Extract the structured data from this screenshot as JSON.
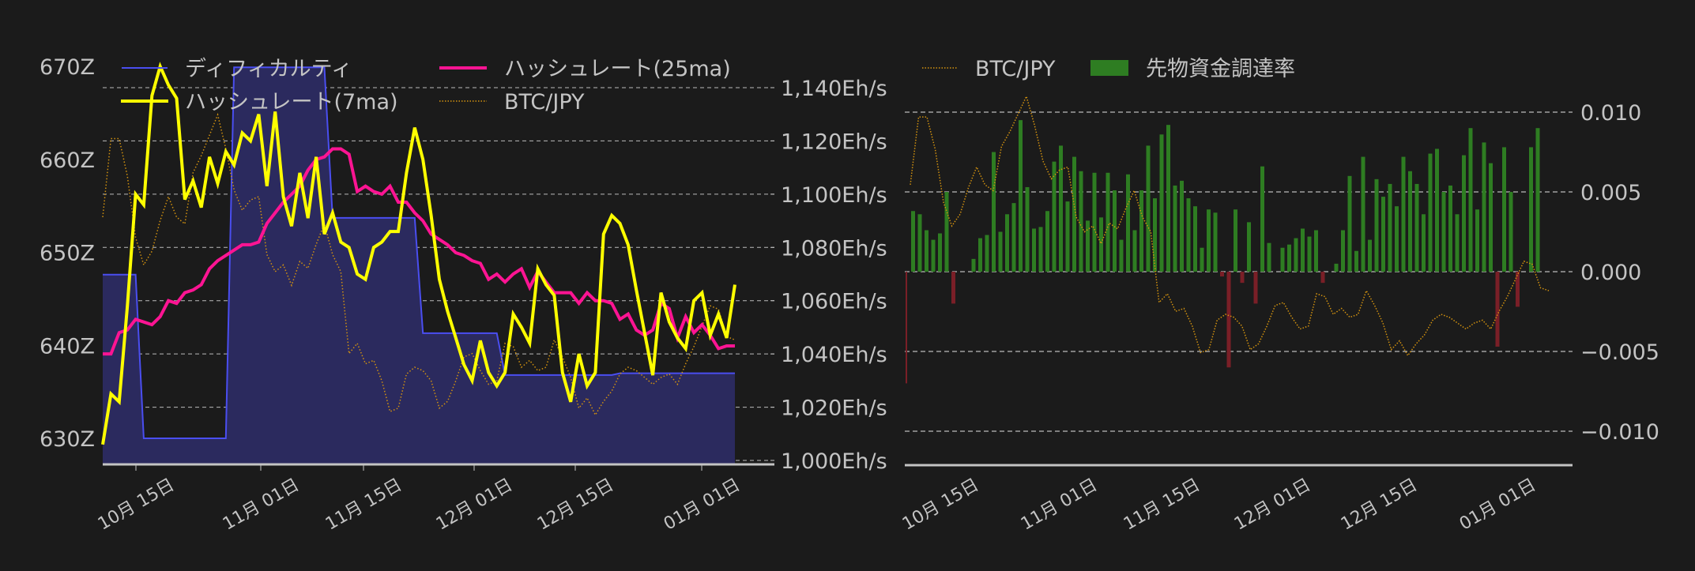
{
  "colors": {
    "background": "#1b1b1b",
    "difficulty_line": "#4a4ef0",
    "difficulty_fill": "#2b2a5e",
    "hashrate_7ma": "#ffff00",
    "hashrate_25ma": "#ff1493",
    "btc_jpy": "#d4930f",
    "funding_positive": "#2e7d22",
    "funding_negative": "#7a1f27",
    "grid": "#d8d8d8",
    "text": "#c4c4c4"
  },
  "chart_data": [
    {
      "type": "line",
      "title": "",
      "legend": [
        "ディフィカルティ",
        "ハッシュレート(7ma)",
        "ハッシュレート(25ma)",
        "BTC/JPY"
      ],
      "legend_position": "upper-left (2 columns)",
      "grid": true,
      "x_tick_labels": [
        "10月 15日",
        "11月 01日",
        "11月 15日",
        "12月 01日",
        "12月 15日",
        "01月 01日"
      ],
      "y_left": {
        "label": "difficulty",
        "ticks": [
          "630Z",
          "640Z",
          "650Z",
          "660Z",
          "670Z"
        ],
        "range": [
          627,
          671
        ]
      },
      "y_right": {
        "label": "hashrate",
        "ticks": [
          "1,000Eh/s",
          "1,020Eh/s",
          "1,040Eh/s",
          "1,060Eh/s",
          "1,080Eh/s",
          "1,100Eh/s",
          "1,120Eh/s",
          "1,140Eh/s"
        ],
        "range": [
          999,
          1148
        ]
      },
      "series": [
        {
          "name": "ディフィカルティ",
          "axis": "left",
          "style": "step-fill",
          "points": [
            [
              0,
              647.6
            ],
            [
              4,
              647.6
            ],
            [
              5,
              630.0
            ],
            [
              15,
              630.0
            ],
            [
              16,
              669.9
            ],
            [
              27,
              669.9
            ],
            [
              28,
              653.7
            ],
            [
              38,
              653.7
            ],
            [
              39,
              641.3
            ],
            [
              48,
              641.3
            ],
            [
              49,
              636.8
            ],
            [
              62,
              636.8
            ],
            [
              63,
              637.0
            ],
            [
              77,
              637.0
            ]
          ]
        },
        {
          "name": "ハッシュレート(7ma)",
          "axis": "right",
          "unit": "Eh/s",
          "values": [
            1006,
            1025,
            1022,
            1058,
            1100,
            1096,
            1137,
            1148,
            1141,
            1136,
            1098,
            1105,
            1095,
            1114,
            1104,
            1116,
            1111,
            1123,
            1120,
            1130,
            1103,
            1131,
            1099,
            1088,
            1108,
            1091,
            1114,
            1085,
            1093,
            1082,
            1080,
            1070,
            1068,
            1080,
            1082,
            1086,
            1086,
            1108,
            1125,
            1113,
            1092,
            1068,
            1056,
            1046,
            1036,
            1030,
            1045,
            1033,
            1028,
            1033,
            1055,
            1050,
            1044,
            1072,
            1066,
            1062,
            1033,
            1022,
            1040,
            1028,
            1033,
            1085,
            1092,
            1089,
            1081,
            1064,
            1048,
            1032,
            1063,
            1052,
            1046,
            1042,
            1060,
            1063,
            1047,
            1055,
            1046,
            1066
          ]
        },
        {
          "name": "ハッシュレート(25ma)",
          "axis": "right",
          "unit": "Eh/s",
          "values": [
            1040,
            1040,
            1048,
            1049,
            1053,
            1052,
            1051,
            1054,
            1060,
            1059,
            1063,
            1064,
            1066,
            1072,
            1075,
            1077,
            1079,
            1081,
            1081,
            1082,
            1089,
            1093,
            1097,
            1100,
            1103,
            1109,
            1113,
            1114,
            1117,
            1117,
            1115,
            1101,
            1103,
            1101,
            1100,
            1103,
            1097,
            1097,
            1093,
            1090,
            1085,
            1083,
            1081,
            1078,
            1077,
            1075,
            1074,
            1068,
            1070,
            1067,
            1070,
            1072,
            1065,
            1071,
            1067,
            1063,
            1063,
            1063,
            1059,
            1063,
            1060,
            1060,
            1059,
            1053,
            1055,
            1049,
            1047,
            1049,
            1059,
            1057,
            1046,
            1054,
            1048,
            1051,
            1047,
            1042,
            1043,
            1043
          ]
        },
        {
          "name": "BTC/JPY",
          "axis": "hidden",
          "style": "dotted",
          "values": [
            0.66,
            0.89,
            0.89,
            0.78,
            0.6,
            0.52,
            0.56,
            0.65,
            0.72,
            0.66,
            0.64,
            0.79,
            0.84,
            0.9,
            0.96,
            0.86,
            0.74,
            0.68,
            0.71,
            0.72,
            0.55,
            0.5,
            0.52,
            0.46,
            0.53,
            0.51,
            0.58,
            0.64,
            0.55,
            0.5,
            0.26,
            0.29,
            0.23,
            0.24,
            0.18,
            0.09,
            0.1,
            0.2,
            0.22,
            0.21,
            0.18,
            0.1,
            0.12,
            0.18,
            0.25,
            0.26,
            0.21,
            0.17,
            0.18,
            0.29,
            0.28,
            0.22,
            0.24,
            0.21,
            0.22,
            0.3,
            0.25,
            0.19,
            0.1,
            0.13,
            0.08,
            0.12,
            0.15,
            0.2,
            0.22,
            0.21,
            0.19,
            0.17,
            0.19,
            0.2,
            0.17,
            0.23,
            0.28,
            0.34,
            0.4,
            0.39,
            0.31,
            0.3
          ]
        }
      ]
    },
    {
      "type": "bar",
      "title": "",
      "legend": [
        "BTC/JPY",
        "先物資金調達率"
      ],
      "legend_position": "upper-left (1 row)",
      "grid": true,
      "x_tick_labels": [
        "10月 15日",
        "11月 01日",
        "11月 15日",
        "12月 01日",
        "12月 15日",
        "01月 01日"
      ],
      "y_right": {
        "ticks": [
          "−0.010",
          "−0.005",
          "0.000",
          "0.005",
          "0.010"
        ],
        "range": [
          -0.0118,
          0.0118
        ]
      },
      "series": [
        {
          "name": "先物資金調達率",
          "style": "bar",
          "values": [
            -0.007,
            0.0038,
            0.0036,
            0.0026,
            0.002,
            0.0024,
            0.005,
            -0.002,
            0.0,
            0.0,
            0.0008,
            0.0021,
            0.0023,
            0.0075,
            0.0025,
            0.0036,
            0.0043,
            0.0095,
            0.0053,
            0.0027,
            0.0028,
            0.0038,
            0.0069,
            0.0079,
            0.0044,
            0.0072,
            0.0063,
            0.0032,
            0.0062,
            0.0034,
            0.0062,
            0.0051,
            0.002,
            0.0061,
            0.0026,
            0.0051,
            0.0079,
            0.0046,
            0.0086,
            0.0092,
            0.0054,
            0.0057,
            0.0046,
            0.0041,
            0.0015,
            0.0039,
            0.0037,
            -0.0003,
            -0.006,
            0.0039,
            -0.0007,
            0.0031,
            -0.002,
            0.0066,
            0.0018,
            0.0,
            0.0015,
            0.0017,
            0.0021,
            0.0027,
            0.0022,
            0.0026,
            -0.0007,
            0.0,
            0.0005,
            0.0026,
            0.006,
            0.0013,
            0.0072,
            0.002,
            0.0058,
            0.0047,
            0.0055,
            0.0041,
            0.0072,
            0.0063,
            0.0055,
            0.0036,
            0.0074,
            0.0077,
            0.005,
            0.0054,
            0.0036,
            0.0073,
            0.009,
            0.0039,
            0.0081,
            0.0068,
            -0.0047,
            0.0078,
            0.005,
            -0.0022,
            0.0,
            0.0078,
            0.009
          ]
        },
        {
          "name": "BTC/JPY",
          "style": "dotted",
          "axis": "hidden",
          "values": [
            0.66,
            0.89,
            0.89,
            0.78,
            0.6,
            0.52,
            0.56,
            0.65,
            0.72,
            0.66,
            0.64,
            0.79,
            0.84,
            0.9,
            0.96,
            0.86,
            0.74,
            0.68,
            0.71,
            0.72,
            0.55,
            0.5,
            0.52,
            0.46,
            0.53,
            0.51,
            0.58,
            0.64,
            0.55,
            0.5,
            0.26,
            0.29,
            0.23,
            0.24,
            0.18,
            0.09,
            0.1,
            0.2,
            0.22,
            0.21,
            0.18,
            0.1,
            0.12,
            0.18,
            0.25,
            0.26,
            0.21,
            0.17,
            0.18,
            0.29,
            0.28,
            0.22,
            0.24,
            0.21,
            0.22,
            0.3,
            0.25,
            0.19,
            0.1,
            0.13,
            0.08,
            0.12,
            0.15,
            0.2,
            0.22,
            0.21,
            0.19,
            0.17,
            0.19,
            0.2,
            0.17,
            0.23,
            0.28,
            0.34,
            0.4,
            0.39,
            0.31,
            0.3
          ]
        }
      ]
    }
  ],
  "left_chart": {
    "legend": {
      "difficulty": "ディフィカルティ",
      "hashrate_7ma": "ハッシュレート(7ma)",
      "hashrate_25ma": "ハッシュレート(25ma)",
      "btc_jpy": "BTC/JPY"
    },
    "y_left_ticks": [
      {
        "label": "670Z",
        "value": 670
      },
      {
        "label": "660Z",
        "value": 660
      },
      {
        "label": "650Z",
        "value": 650
      },
      {
        "label": "640Z",
        "value": 640
      },
      {
        "label": "630Z",
        "value": 630
      }
    ],
    "y_right_ticks": [
      {
        "label": "1,140Eh/s",
        "value": 1140
      },
      {
        "label": "1,120Eh/s",
        "value": 1120
      },
      {
        "label": "1,100Eh/s",
        "value": 1100
      },
      {
        "label": "1,080Eh/s",
        "value": 1080
      },
      {
        "label": "1,060Eh/s",
        "value": 1060
      },
      {
        "label": "1,040Eh/s",
        "value": 1040
      },
      {
        "label": "1,020Eh/s",
        "value": 1020
      },
      {
        "label": "1,000Eh/s",
        "value": 1000
      }
    ],
    "x_ticks": [
      {
        "label": "10月 15日",
        "index": 3
      },
      {
        "label": "11月 01日",
        "index": 20
      },
      {
        "label": "11月 15日",
        "index": 34
      },
      {
        "label": "12月 01日",
        "index": 50
      },
      {
        "label": "12月 15日",
        "index": 64
      },
      {
        "label": "01月 01日",
        "index": 81
      }
    ]
  },
  "right_chart": {
    "legend": {
      "btc_jpy": "BTC/JPY",
      "funding_rate": "先物資金調達率"
    },
    "y_ticks": [
      {
        "label": "0.010",
        "value": 0.01
      },
      {
        "label": "0.005",
        "value": 0.005
      },
      {
        "label": "0.000",
        "value": 0.0
      },
      {
        "label": "−0.005",
        "value": -0.005
      },
      {
        "label": "−0.010",
        "value": -0.01
      }
    ],
    "x_ticks": [
      {
        "label": "10月 15日"
      },
      {
        "label": "11月 01日"
      },
      {
        "label": "11月 15日"
      },
      {
        "label": "12月 01日"
      },
      {
        "label": "12月 15日"
      },
      {
        "label": "01月 01日"
      }
    ]
  }
}
